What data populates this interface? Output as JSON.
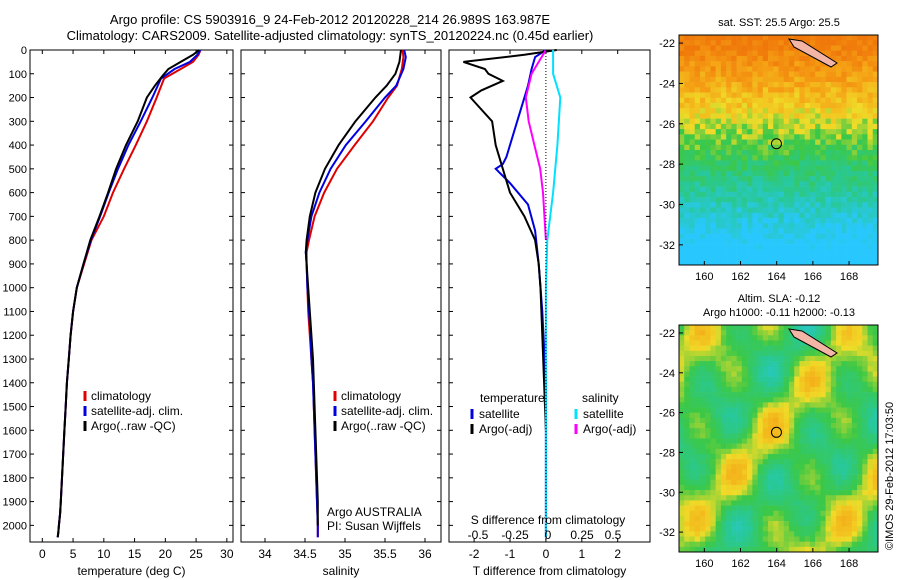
{
  "title": {
    "line1": "Argo profile: CS 5903916_9 24-Feb-2012 20120228_214 26.989S 163.987E",
    "line2": "Climatology: CARS2009. Satellite-adjusted climatology: synTS_20120224.nc (0.45d earlier)"
  },
  "credit": "©IMOS 29-Feb-2012 17:03:50",
  "colors": {
    "climatology": "#e00000",
    "satellite": "#0000e0",
    "argo": "#000000",
    "sat_salinity": "#00e0ff",
    "argo_salinity": "#ff00ff"
  },
  "chart_data": [
    {
      "type": "line",
      "id": "temperature",
      "xlabel": "temperature (deg C)",
      "ylabel": "",
      "xlim": [
        -2,
        31
      ],
      "ylim": [
        2070,
        0
      ],
      "xticks": [
        0,
        5,
        10,
        15,
        20,
        25,
        30
      ],
      "yticks": [
        0,
        100,
        200,
        300,
        400,
        500,
        600,
        700,
        800,
        900,
        1000,
        1100,
        1200,
        1300,
        1400,
        1500,
        1600,
        1700,
        1800,
        1900,
        2000
      ],
      "legend": [
        "climatology",
        "satellite-adj. clim.",
        "Argo(..raw -QC)"
      ],
      "series": [
        {
          "name": "climatology",
          "color": "#e00000",
          "x": [
            25.7,
            25.4,
            24.5,
            22.5,
            19.8,
            18.6,
            17.0,
            15.2,
            13.3,
            11.5,
            10.0,
            8.0,
            6.8,
            5.6,
            5.0,
            4.6,
            4.3,
            4.0,
            3.8,
            3.6,
            3.4,
            3.2,
            3.0,
            2.9,
            2.7,
            2.6,
            2.5
          ],
          "y": [
            0,
            20,
            50,
            80,
            120,
            200,
            300,
            400,
            500,
            600,
            700,
            800,
            900,
            1000,
            1100,
            1200,
            1300,
            1400,
            1500,
            1600,
            1700,
            1800,
            1900,
            1950,
            2000,
            2030,
            2050
          ]
        },
        {
          "name": "satellite-adj. clim.",
          "color": "#0000e0",
          "x": [
            25.7,
            25.2,
            24.0,
            21.5,
            19.3,
            17.9,
            16.0,
            14.0,
            12.3,
            10.8,
            9.4,
            7.9,
            6.7,
            5.6,
            5.0,
            4.6,
            4.3,
            4.0,
            3.8,
            3.6,
            3.4,
            3.2,
            3.0,
            2.9,
            2.7,
            2.6,
            2.5
          ],
          "y": [
            0,
            20,
            50,
            80,
            120,
            200,
            300,
            400,
            500,
            600,
            700,
            800,
            900,
            1000,
            1100,
            1200,
            1300,
            1400,
            1500,
            1600,
            1700,
            1800,
            1900,
            1950,
            2000,
            2030,
            2050
          ]
        },
        {
          "name": "Argo(..raw -QC)",
          "color": "#000000",
          "x": [
            25.5,
            24.5,
            22.5,
            20.5,
            19.5,
            18.3,
            17.0,
            15.5,
            13.6,
            12.0,
            10.7,
            9.3,
            7.8,
            6.7,
            5.6,
            5.0,
            4.6,
            4.3,
            4.0,
            3.8,
            3.6,
            3.4,
            3.2,
            3.0,
            2.9,
            2.7,
            2.6,
            2.5
          ],
          "y": [
            0,
            20,
            50,
            80,
            110,
            150,
            200,
            300,
            400,
            500,
            600,
            700,
            800,
            900,
            1000,
            1100,
            1200,
            1300,
            1400,
            1500,
            1600,
            1700,
            1800,
            1900,
            1950,
            2000,
            2030,
            2050
          ]
        }
      ]
    },
    {
      "type": "line",
      "id": "salinity",
      "xlabel": "salinity",
      "xlim": [
        33.7,
        36.2
      ],
      "ylim": [
        2070,
        0
      ],
      "xticks": [
        34,
        34.5,
        35,
        35.5,
        36
      ],
      "legend": [
        "climatology",
        "satellite-adj. clim.",
        "Argo(..raw -QC)"
      ],
      "annotation": [
        "Argo AUSTRALIA",
        "PI: Susan Wijffels"
      ],
      "series": [
        {
          "name": "climatology",
          "color": "#e00000",
          "x": [
            35.72,
            35.73,
            35.71,
            35.65,
            35.54,
            35.35,
            35.12,
            34.9,
            34.74,
            34.62,
            34.55,
            34.52,
            34.52,
            34.53,
            34.54,
            34.56,
            34.58,
            34.6,
            34.61,
            34.62,
            34.63,
            34.64,
            34.65,
            34.66,
            34.66
          ],
          "y": [
            0,
            30,
            80,
            150,
            200,
            300,
            400,
            500,
            600,
            700,
            800,
            850,
            900,
            1000,
            1100,
            1200,
            1300,
            1400,
            1500,
            1600,
            1700,
            1800,
            1900,
            2000,
            2050
          ]
        },
        {
          "name": "satellite-adj. clim.",
          "color": "#0000e0",
          "x": [
            35.74,
            35.76,
            35.73,
            35.64,
            35.5,
            35.26,
            35.01,
            34.82,
            34.68,
            34.58,
            34.53,
            34.51,
            34.52,
            34.53,
            34.55,
            34.57,
            34.58,
            34.6,
            34.61,
            34.62,
            34.63,
            34.64,
            34.65,
            34.66,
            34.66
          ],
          "y": [
            0,
            30,
            80,
            150,
            200,
            300,
            400,
            500,
            600,
            700,
            800,
            850,
            900,
            1000,
            1100,
            1200,
            1300,
            1400,
            1500,
            1600,
            1700,
            1800,
            1900,
            2000,
            2050
          ]
        },
        {
          "name": "Argo(..raw -QC)",
          "color": "#000000",
          "x": [
            35.7,
            35.68,
            35.63,
            35.52,
            35.38,
            35.13,
            34.92,
            34.75,
            34.63,
            34.56,
            34.52,
            34.51,
            34.52,
            34.54,
            34.56,
            34.58,
            34.6,
            34.61,
            34.62,
            34.63,
            34.64,
            34.65,
            34.66,
            34.66
          ],
          "y": [
            0,
            50,
            100,
            150,
            200,
            300,
            400,
            500,
            600,
            700,
            800,
            850,
            900,
            1000,
            1100,
            1200,
            1300,
            1400,
            1500,
            1600,
            1700,
            1800,
            1900,
            2000
          ]
        }
      ]
    },
    {
      "type": "line",
      "id": "difference",
      "xlabel": "T difference from climatology",
      "xlabel_top": "S difference from climatology",
      "xlim": [
        -2.7,
        2.9
      ],
      "ylim": [
        2070,
        0
      ],
      "xticks": [
        -2,
        -1,
        0,
        1,
        2
      ],
      "xticks_s": [
        "-0.5",
        "-0.25",
        "0",
        "0.25",
        "0.5"
      ],
      "legend_titles": [
        "temperature",
        "salinity"
      ],
      "legend": [
        "satellite",
        "Argo(-adj)",
        "satellite",
        "Argo(-adj)"
      ],
      "series": [
        {
          "name": "T satellite",
          "color": "#0000e0",
          "x": [
            0,
            -0.3,
            -0.4,
            -0.5,
            -0.7,
            -0.9,
            -1.0,
            -1.1,
            -1.2,
            -1.4,
            -1.0,
            -0.5,
            -0.3,
            -0.2,
            -0.1,
            0,
            0,
            0
          ],
          "y": [
            0,
            30,
            80,
            150,
            250,
            350,
            400,
            450,
            480,
            500,
            560,
            650,
            760,
            900,
            1100,
            1400,
            1700,
            2050
          ]
        },
        {
          "name": "T Argo(-adj)",
          "color": "#000000",
          "x": [
            0.3,
            -0.6,
            -2.3,
            -1.7,
            -1.6,
            -1.2,
            -1.8,
            -2.1,
            -1.5,
            -1.4,
            -1.2,
            -1.0,
            -0.6,
            -0.3,
            -0.2,
            -0.15,
            -0.1,
            0
          ],
          "y": [
            0,
            20,
            50,
            80,
            100,
            130,
            170,
            200,
            300,
            400,
            500,
            600,
            700,
            800,
            900,
            1000,
            1200,
            1600
          ]
        },
        {
          "name": "S satellite",
          "color": "#00e0ff",
          "x": [
            0.05,
            0.05,
            0.1,
            0.08,
            0.05,
            0.01,
            0,
            0,
            0,
            0
          ],
          "y": [
            0,
            100,
            200,
            400,
            600,
            800,
            1000,
            1400,
            1800,
            2050
          ]
        },
        {
          "name": "S Argo(-adj)",
          "color": "#ff00ff",
          "x": [
            0,
            -0.05,
            -0.1,
            -0.14,
            -0.12,
            -0.08,
            -0.04,
            -0.02,
            0
          ],
          "y": [
            0,
            50,
            100,
            200,
            300,
            400,
            500,
            600,
            800
          ]
        }
      ]
    },
    {
      "type": "heatmap",
      "id": "sst-map",
      "title": "sat. SST: 25.5 Argo: 25.5",
      "xticks": [
        160,
        162,
        164,
        166,
        168
      ],
      "yticks": [
        -22,
        -24,
        -26,
        -28,
        -30,
        -32
      ],
      "xlim": [
        158.6,
        169.6
      ],
      "ylim": [
        -33.0,
        -21.6
      ],
      "marker": [
        163.987,
        -26.989
      ]
    },
    {
      "type": "heatmap",
      "id": "sla-map",
      "title": "Altim. SLA: -0.12",
      "title2": "Argo h1000: -0.11 h2000: -0.13",
      "xticks": [
        160,
        162,
        164,
        166,
        168
      ],
      "yticks": [
        -22,
        -24,
        -26,
        -28,
        -30,
        -32
      ],
      "xlim": [
        158.6,
        169.6
      ],
      "ylim": [
        -33.0,
        -21.6
      ],
      "marker": [
        163.987,
        -26.989
      ]
    }
  ]
}
